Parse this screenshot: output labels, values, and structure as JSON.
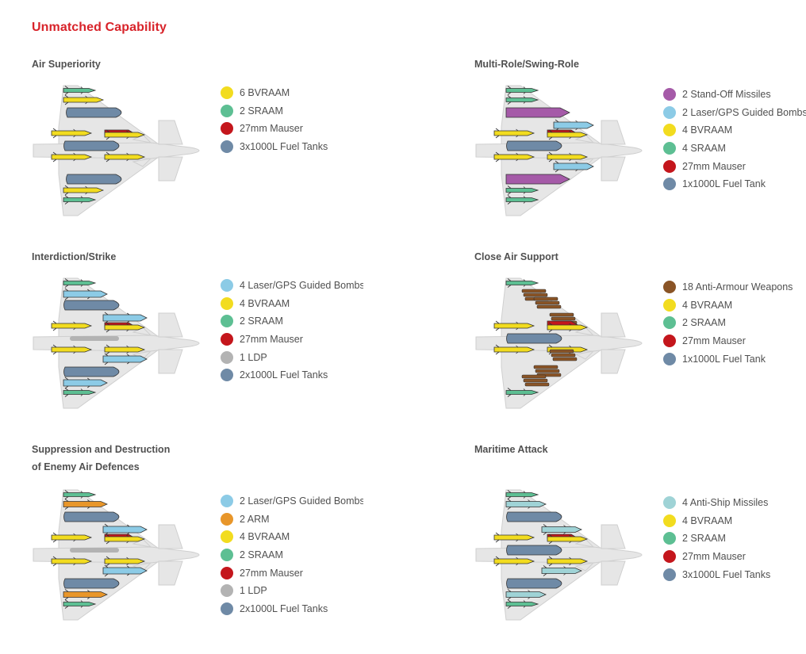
{
  "page_title": "Unmatched Capability",
  "colors": {
    "title_red": "#d8232a",
    "bvraam": "#f2dc1f",
    "sraam": "#5dbf93",
    "mauser": "#c4161c",
    "fuel": "#6f8aa6",
    "guided_bomb": "#8ccbe6",
    "standoff": "#a55aa8",
    "ldp": "#b3b3b3",
    "arm": "#e8962a",
    "anti_armour": "#8a5426",
    "anti_ship": "#9fd3d6",
    "airframe": "#e6e6e6"
  },
  "panels": [
    {
      "id": "air-superiority",
      "title_lines": [
        "Air Superiority"
      ],
      "legend": [
        {
          "label": "6 BVRAAM",
          "color": "#f2dc1f"
        },
        {
          "label": "2 SRAAM",
          "color": "#5dbf93"
        },
        {
          "label": "27mm Mauser",
          "color": "#c4161c"
        },
        {
          "label": "3x1000L Fuel Tanks",
          "color": "#6f8aa6"
        }
      ]
    },
    {
      "id": "multi-role",
      "title_lines": [
        "Multi-Role/Swing-Role"
      ],
      "legend": [
        {
          "label": "2 Stand-Off Missiles",
          "color": "#a55aa8"
        },
        {
          "label": "2 Laser/GPS Guided Bombs",
          "color": "#8ccbe6"
        },
        {
          "label": "4 BVRAAM",
          "color": "#f2dc1f"
        },
        {
          "label": "4 SRAAM",
          "color": "#5dbf93"
        },
        {
          "label": "27mm Mauser",
          "color": "#c4161c"
        },
        {
          "label": "1x1000L Fuel Tank",
          "color": "#6f8aa6"
        }
      ]
    },
    {
      "id": "interdiction-strike",
      "title_lines": [
        "Interdiction/Strike"
      ],
      "legend": [
        {
          "label": "4 Laser/GPS Guided Bombs",
          "color": "#8ccbe6"
        },
        {
          "label": "4 BVRAAM",
          "color": "#f2dc1f"
        },
        {
          "label": "2 SRAAM",
          "color": "#5dbf93"
        },
        {
          "label": "27mm Mauser",
          "color": "#c4161c"
        },
        {
          "label": "1 LDP",
          "color": "#b3b3b3"
        },
        {
          "label": "2x1000L Fuel Tanks",
          "color": "#6f8aa6"
        }
      ]
    },
    {
      "id": "close-air-support",
      "title_lines": [
        "Close Air Support"
      ],
      "legend": [
        {
          "label": "18 Anti-Armour Weapons",
          "color": "#8a5426"
        },
        {
          "label": "4 BVRAAM",
          "color": "#f2dc1f"
        },
        {
          "label": "2 SRAAM",
          "color": "#5dbf93"
        },
        {
          "label": "27mm Mauser",
          "color": "#c4161c"
        },
        {
          "label": "1x1000L Fuel Tank",
          "color": "#6f8aa6"
        }
      ]
    },
    {
      "id": "sead-dead",
      "title_lines": [
        "Suppression and Destruction",
        "of Enemy Air Defences"
      ],
      "legend": [
        {
          "label": "2 Laser/GPS Guided Bombs",
          "color": "#8ccbe6"
        },
        {
          "label": "2 ARM",
          "color": "#e8962a"
        },
        {
          "label": "4 BVRAAM",
          "color": "#f2dc1f"
        },
        {
          "label": "2 SRAAM",
          "color": "#5dbf93"
        },
        {
          "label": "27mm Mauser",
          "color": "#c4161c"
        },
        {
          "label": "1 LDP",
          "color": "#b3b3b3"
        },
        {
          "label": "2x1000L Fuel Tanks",
          "color": "#6f8aa6"
        }
      ]
    },
    {
      "id": "maritime-attack",
      "title_lines": [
        "Maritime Attack"
      ],
      "legend": [
        {
          "label": "4 Anti-Ship Missiles",
          "color": "#9fd3d6"
        },
        {
          "label": "4 BVRAAM",
          "color": "#f2dc1f"
        },
        {
          "label": "2 SRAAM",
          "color": "#5dbf93"
        },
        {
          "label": "27mm Mauser",
          "color": "#c4161c"
        },
        {
          "label": "3x1000L Fuel Tanks",
          "color": "#6f8aa6"
        }
      ]
    }
  ]
}
